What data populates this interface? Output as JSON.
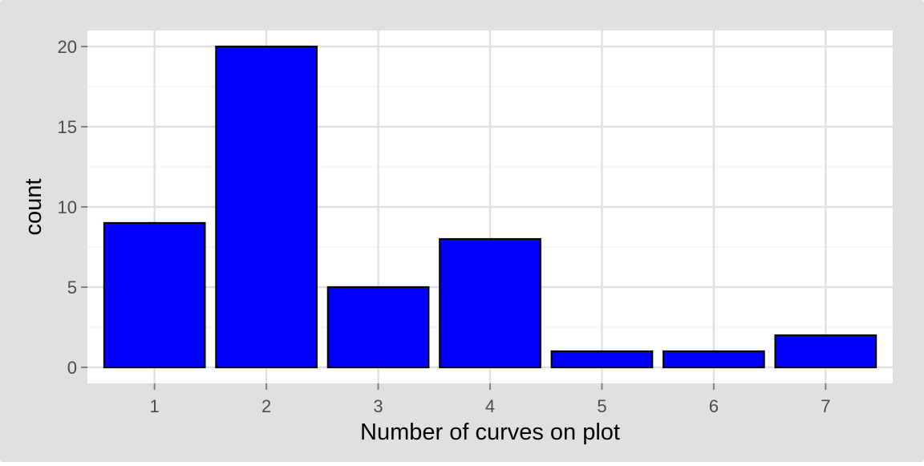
{
  "chart_data": {
    "type": "bar",
    "title": "",
    "xlabel": "Number of curves on plot",
    "ylabel": "count",
    "categories": [
      "1",
      "2",
      "3",
      "4",
      "5",
      "6",
      "7"
    ],
    "values": [
      9,
      20,
      5,
      8,
      1,
      1,
      2
    ],
    "ylim": [
      -1,
      21
    ],
    "yticks": [
      0,
      5,
      10,
      15,
      20
    ],
    "ytick_labels": [
      "0",
      "5",
      "10",
      "15",
      "20"
    ],
    "grid": true,
    "legend": "none",
    "colors": {
      "bar_fill": "#0000ff",
      "bar_outline": "#000000",
      "outer_background": "#e0e0e0",
      "panel_background": "#ffffff",
      "major_grid": "#e0e0e0",
      "minor_grid": "#f2f2f2",
      "tick_text": "#4d4d4d",
      "axis_title": "#000000"
    }
  }
}
